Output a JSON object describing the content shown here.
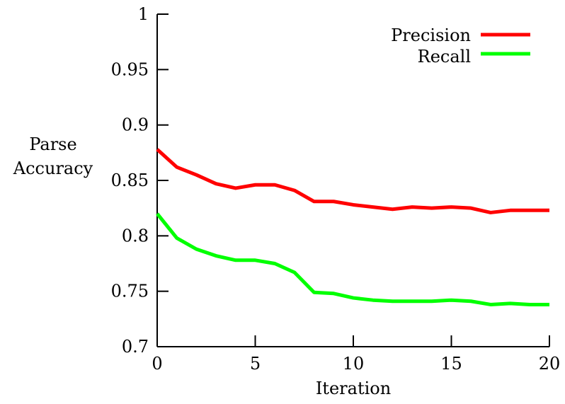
{
  "chart_data": {
    "type": "line",
    "title": "",
    "xlabel": "Iteration",
    "ylabel": [
      "Parse",
      "Accuracy"
    ],
    "xlim": [
      0,
      20
    ],
    "ylim": [
      0.7,
      1
    ],
    "xticks": [
      0,
      5,
      10,
      15,
      20
    ],
    "xtick_labels": [
      "0",
      "5",
      "10",
      "15",
      "20"
    ],
    "yticks": [
      0.7,
      0.75,
      0.8,
      0.85,
      0.9,
      0.95,
      1
    ],
    "ytick_labels": [
      "0.7",
      "0.75",
      "0.8",
      "0.85",
      "0.9",
      "0.95",
      "1"
    ],
    "grid": false,
    "legend_position": "top-right",
    "x": [
      0,
      1,
      2,
      3,
      4,
      5,
      6,
      7,
      8,
      9,
      10,
      11,
      12,
      13,
      14,
      15,
      16,
      17,
      18,
      19,
      20
    ],
    "series": [
      {
        "name": "Precision",
        "color": "#ff0000",
        "values": [
          0.878,
          0.862,
          0.855,
          0.847,
          0.843,
          0.846,
          0.846,
          0.841,
          0.831,
          0.831,
          0.828,
          0.826,
          0.824,
          0.826,
          0.825,
          0.826,
          0.825,
          0.821,
          0.823,
          0.823,
          0.823
        ]
      },
      {
        "name": "Recall",
        "color": "#00ff00",
        "values": [
          0.82,
          0.798,
          0.788,
          0.782,
          0.778,
          0.778,
          0.775,
          0.767,
          0.749,
          0.748,
          0.744,
          0.742,
          0.741,
          0.741,
          0.741,
          0.742,
          0.741,
          0.738,
          0.739,
          0.738,
          0.738
        ]
      }
    ]
  }
}
